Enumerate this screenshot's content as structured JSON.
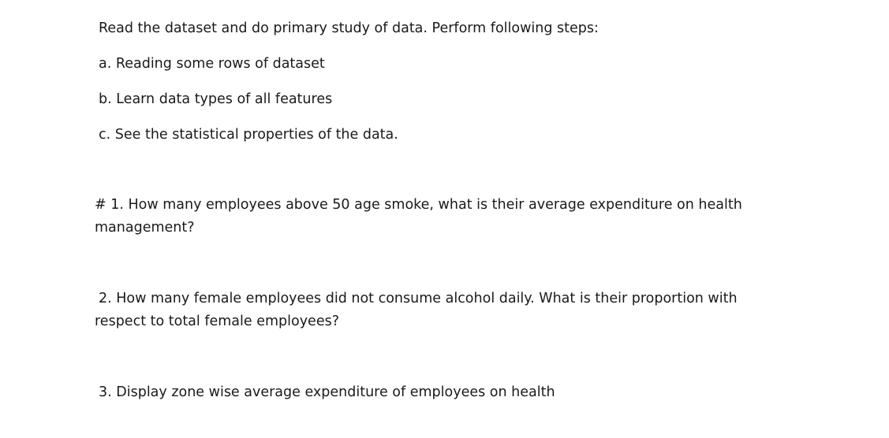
{
  "intro": "Read the dataset and do primary study of data. Perform following steps:",
  "steps": [
    "a. Reading some rows of dataset",
    "b. Learn data types of all features",
    "c. See the statistical properties of the data."
  ],
  "questions": [
    {
      "line1": "# 1. How many employees above 50 age smoke, what is their average expenditure on health",
      "line2": "management?"
    },
    {
      "line1": "2. How many female employees did not consume alcohol daily. What is their proportion with",
      "line2": "respect to total female employees?"
    },
    {
      "line1": "3. Display zone wise average expenditure of employees on health"
    }
  ]
}
